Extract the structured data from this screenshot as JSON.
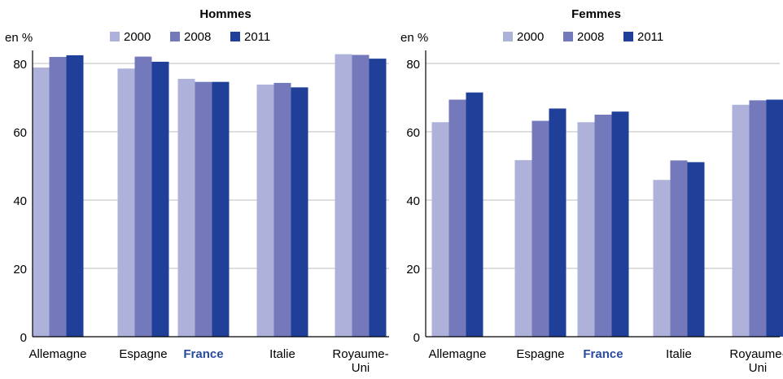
{
  "chart_data": [
    {
      "type": "bar",
      "title": "Hommes",
      "ylabel": "en %",
      "ylim": [
        0,
        85
      ],
      "yticks": [
        0,
        20,
        40,
        60,
        80
      ],
      "grid": true,
      "legend_position": "top",
      "categories": [
        "Allemagne",
        "Espagne",
        "France",
        "Italie",
        "Royaume-Uni"
      ],
      "category_labels": [
        [
          "Allemagne"
        ],
        [
          "Espagne"
        ],
        [
          "France"
        ],
        [
          "Italie"
        ],
        [
          "Royaume-",
          "Uni"
        ]
      ],
      "highlighted_category": "France",
      "series": [
        {
          "name": "2000",
          "color": "#aeb2da",
          "values": [
            78.8,
            78.5,
            75.5,
            73.8,
            82.7
          ]
        },
        {
          "name": "2008",
          "color": "#7479bb",
          "values": [
            81.9,
            82.0,
            74.6,
            74.3,
            82.5
          ]
        },
        {
          "name": "2011",
          "color": "#1f3f99",
          "values": [
            82.4,
            80.5,
            74.6,
            73.0,
            81.4
          ]
        }
      ]
    },
    {
      "type": "bar",
      "title": "Femmes",
      "ylabel": "en %",
      "ylim": [
        0,
        85
      ],
      "yticks": [
        0,
        20,
        40,
        60,
        80
      ],
      "grid": true,
      "legend_position": "top",
      "categories": [
        "Allemagne",
        "Espagne",
        "France",
        "Italie",
        "Royaume-Uni"
      ],
      "category_labels": [
        [
          "Allemagne"
        ],
        [
          "Espagne"
        ],
        [
          "France"
        ],
        [
          "Italie"
        ],
        [
          "Royaume-",
          "Uni"
        ]
      ],
      "highlighted_category": "France",
      "series": [
        {
          "name": "2000",
          "color": "#aeb2da",
          "values": [
            62.8,
            51.7,
            62.8,
            45.9,
            67.9
          ]
        },
        {
          "name": "2008",
          "color": "#7479bb",
          "values": [
            69.4,
            63.2,
            65.0,
            51.6,
            69.2
          ]
        },
        {
          "name": "2011",
          "color": "#1f3f99",
          "values": [
            71.5,
            66.8,
            65.9,
            51.1,
            69.4
          ]
        }
      ]
    }
  ],
  "colors": {
    "highlight_text": "#2a4aa0",
    "grid": "#bdbdbd",
    "axis": "#000000"
  }
}
